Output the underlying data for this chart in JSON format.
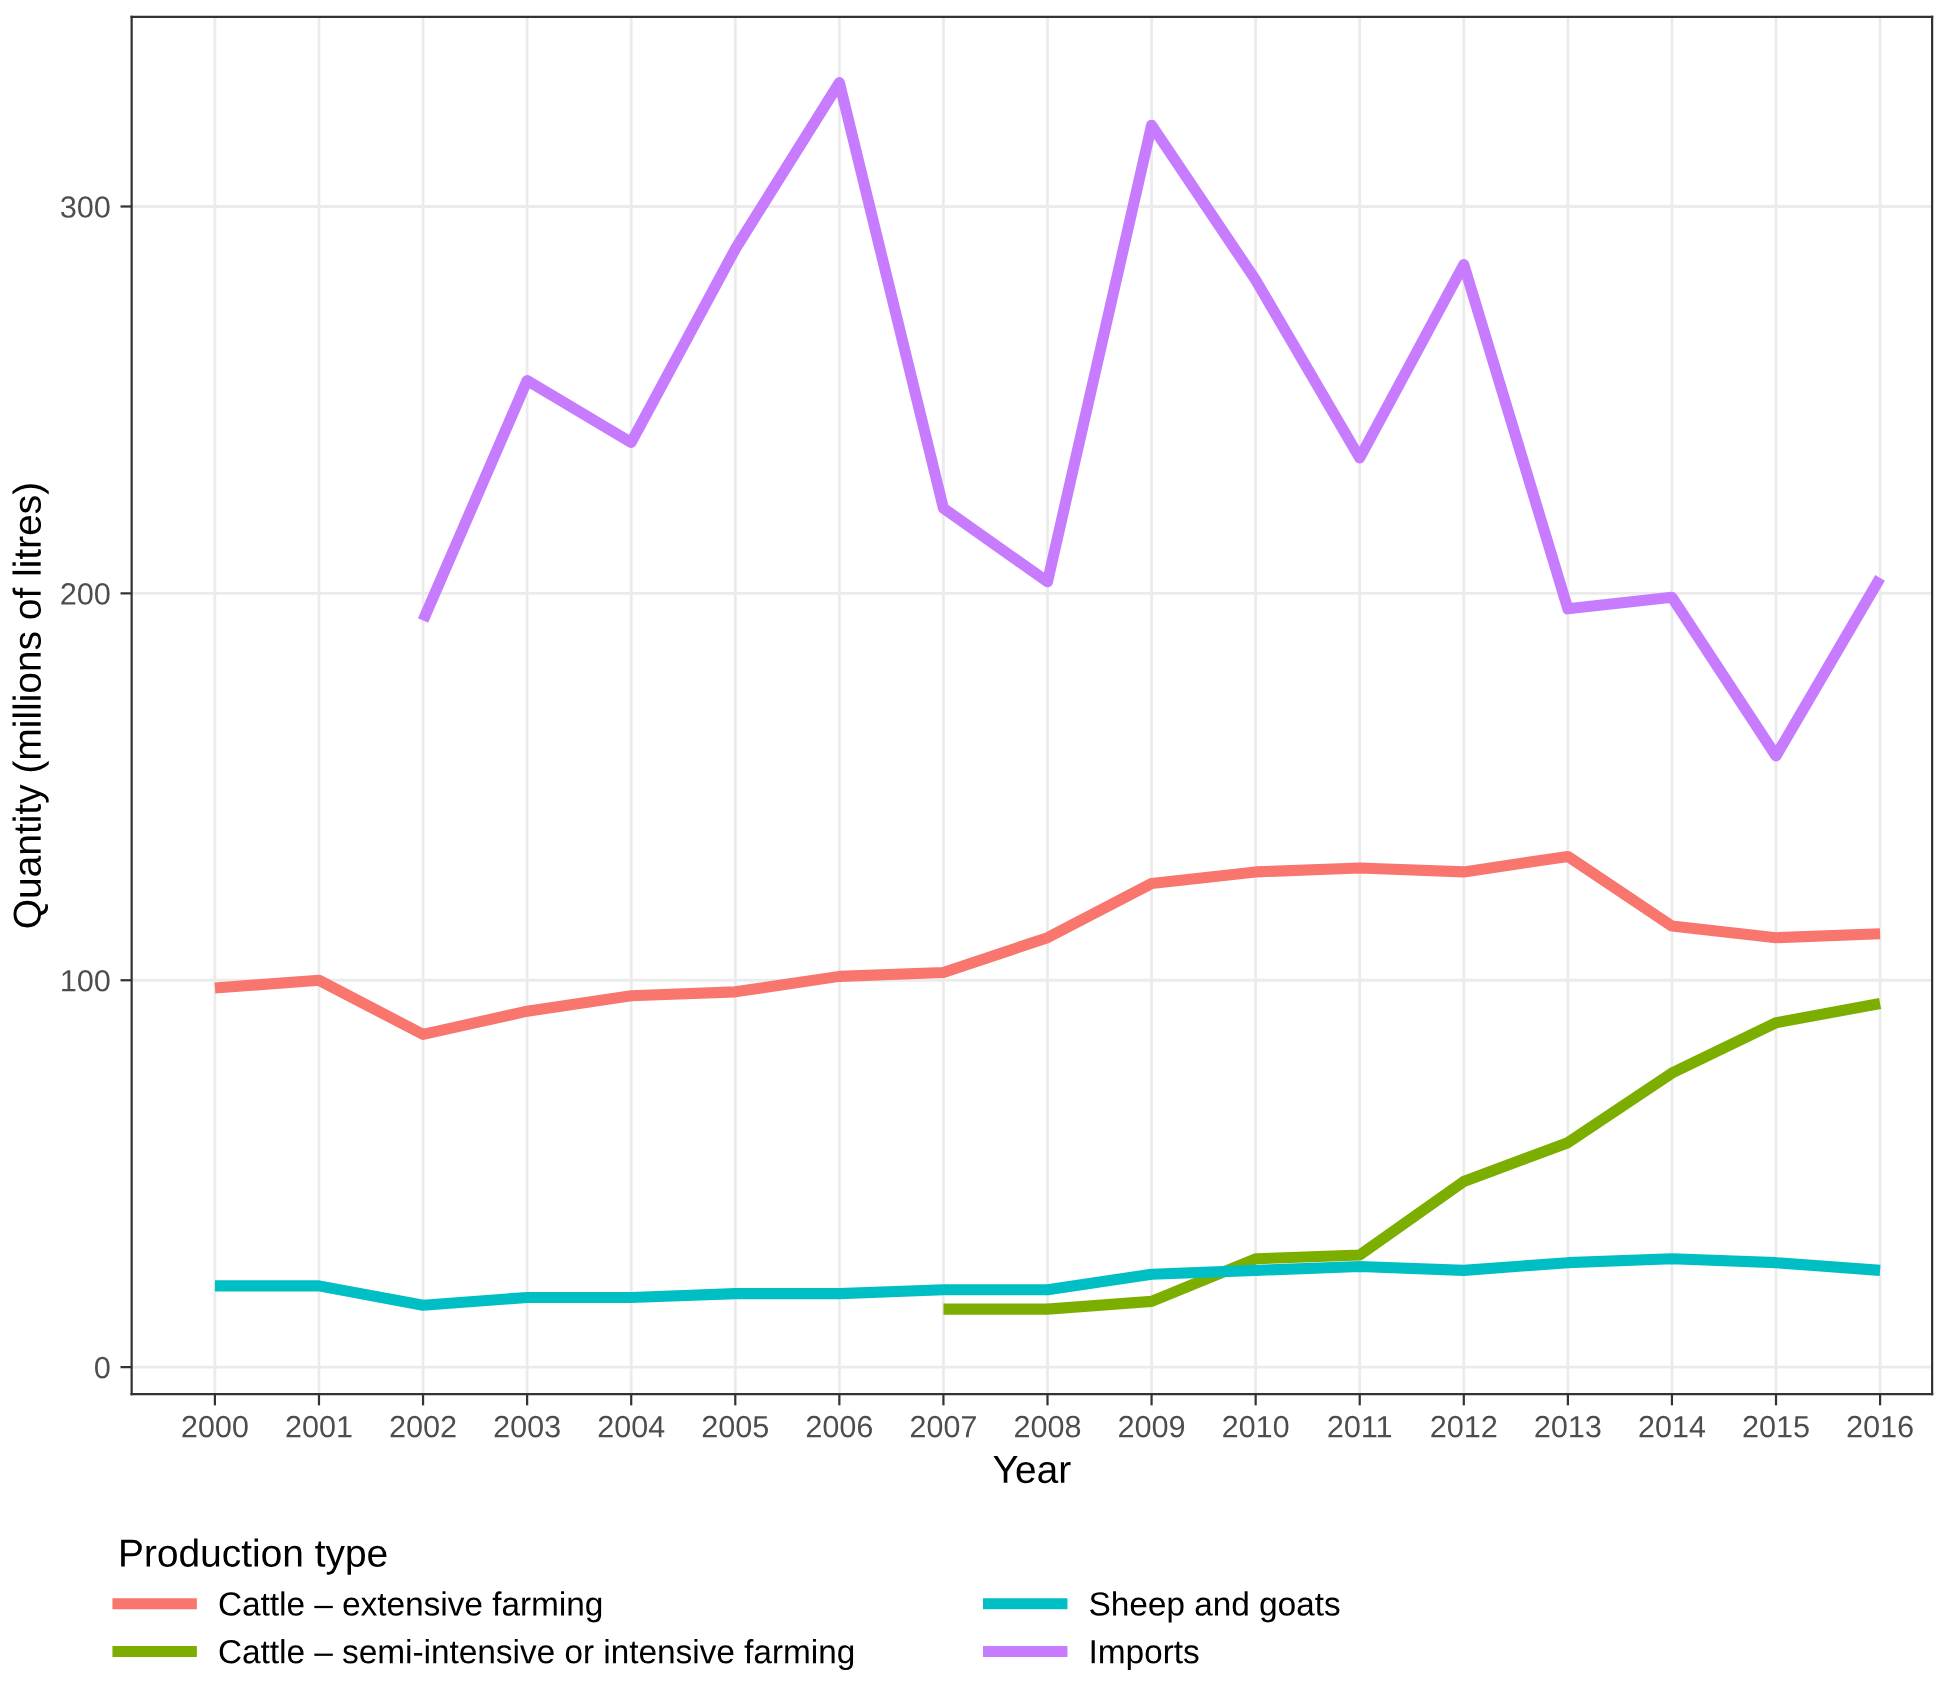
{
  "chart_data": {
    "type": "line",
    "xlabel": "Year",
    "ylabel": "Quantity (millions of litres)",
    "legend_title": "Production type",
    "legend": "bottom",
    "grid": true,
    "x": [
      2000,
      2001,
      2002,
      2003,
      2004,
      2005,
      2006,
      2007,
      2008,
      2009,
      2010,
      2011,
      2012,
      2013,
      2014,
      2015,
      2016
    ],
    "xlim": [
      1999.2,
      2016.5
    ],
    "xticks": [
      2000,
      2001,
      2002,
      2003,
      2004,
      2005,
      2006,
      2007,
      2008,
      2009,
      2010,
      2011,
      2012,
      2013,
      2014,
      2015,
      2016
    ],
    "ylim": [
      -7,
      349
    ],
    "yticks": [
      0,
      100,
      200,
      300
    ],
    "series": [
      {
        "name": "Cattle – extensive farming",
        "color": "#f8766d",
        "values": [
          98,
          100,
          86,
          92,
          96,
          97,
          101,
          102,
          111,
          125,
          128,
          129,
          128,
          132,
          114,
          111,
          112
        ]
      },
      {
        "name": "Cattle – semi-intensive or intensive farming",
        "color": "#7cae00",
        "values": [
          null,
          null,
          null,
          null,
          null,
          null,
          null,
          15,
          15,
          17,
          28,
          29,
          48,
          58,
          76,
          89,
          94
        ]
      },
      {
        "name": "Sheep and goats",
        "color": "#00bfc4",
        "values": [
          21,
          21,
          16,
          18,
          18,
          19,
          19,
          20,
          20,
          24,
          25,
          26,
          25,
          27,
          28,
          27,
          25
        ]
      },
      {
        "name": "Imports",
        "color": "#c77cff",
        "values": [
          null,
          null,
          193,
          255,
          239,
          289,
          332,
          222,
          203,
          321,
          281,
          235,
          285,
          196,
          199,
          158,
          204
        ]
      }
    ]
  }
}
